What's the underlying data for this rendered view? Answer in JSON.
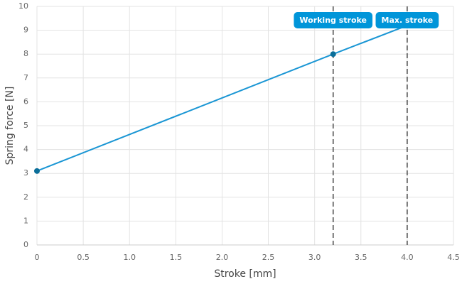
{
  "chart_data": {
    "type": "line",
    "x_label": "Stroke [mm]",
    "y_label": "Spring force [N]",
    "series": [
      {
        "name": "Spring force",
        "color": "#1a96d4",
        "x": [
          0,
          3.2,
          4.0
        ],
        "values": [
          3.1,
          8.0,
          9.2
        ],
        "marked": [
          true,
          true,
          false
        ]
      }
    ],
    "xlim": [
      0,
      4.5
    ],
    "xticks": [
      0,
      0.5,
      {
        "value": 1,
        "label": "1.0"
      },
      1.5,
      {
        "value": 2,
        "label": "2.0"
      },
      2.5,
      {
        "value": 3,
        "label": "3.0"
      },
      3.5,
      {
        "value": 4,
        "label": "4.0"
      },
      4.5
    ],
    "ylim": [
      0,
      10
    ],
    "yticks": [
      0,
      1,
      2,
      3,
      4,
      5,
      6,
      7,
      8,
      9,
      10
    ],
    "grid": true,
    "annotations": [
      {
        "x": 3.2,
        "label": "Working stroke"
      },
      {
        "x": 4.0,
        "label": "Max. stroke"
      }
    ],
    "annotation_color": "#0095d9"
  }
}
